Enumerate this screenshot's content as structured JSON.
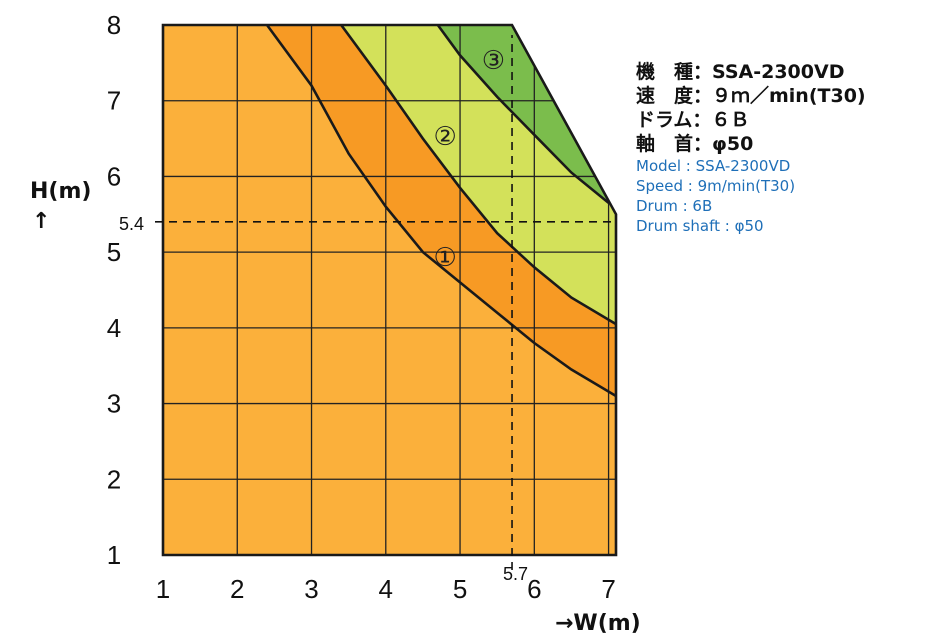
{
  "chart_data": {
    "type": "area",
    "title": "",
    "xlabel": "→W(m)",
    "ylabel": "H(m)",
    "ylabel_arrow": "↑",
    "xlim": [
      1,
      7.1
    ],
    "ylim": [
      1,
      8
    ],
    "x_ticks": [
      "1",
      "2",
      "3",
      "4",
      "5",
      "6",
      "7"
    ],
    "y_ticks": [
      "1",
      "2",
      "3",
      "4",
      "5",
      "6",
      "7",
      "8"
    ],
    "grid": true,
    "envelope": [
      [
        1,
        1
      ],
      [
        1,
        8
      ],
      [
        5.7,
        8
      ],
      [
        7.1,
        5.5
      ],
      [
        7.1,
        1
      ]
    ],
    "boundaries": [
      {
        "name": "1",
        "points": [
          [
            2.4,
            8
          ],
          [
            3.0,
            7.2
          ],
          [
            3.5,
            6.3
          ],
          [
            4.0,
            5.6
          ],
          [
            4.5,
            5.0
          ],
          [
            5.0,
            4.6
          ],
          [
            5.5,
            4.2
          ],
          [
            6.0,
            3.8
          ],
          [
            6.5,
            3.45
          ],
          [
            7.1,
            3.1
          ]
        ]
      },
      {
        "name": "2",
        "points": [
          [
            3.4,
            8
          ],
          [
            4.0,
            7.2
          ],
          [
            4.5,
            6.5
          ],
          [
            5.0,
            5.85
          ],
          [
            5.5,
            5.25
          ],
          [
            6.0,
            4.8
          ],
          [
            6.5,
            4.4
          ],
          [
            7.1,
            4.05
          ]
        ]
      },
      {
        "name": "3",
        "points": [
          [
            4.7,
            8
          ],
          [
            5.0,
            7.6
          ],
          [
            5.5,
            7.05
          ],
          [
            6.0,
            6.55
          ],
          [
            6.5,
            6.05
          ],
          [
            7.0,
            5.65
          ]
        ]
      }
    ],
    "zones": [
      {
        "label": "①",
        "x": 4.8,
        "y": 4.95,
        "color": "#f79a24"
      },
      {
        "label": "②",
        "x": 4.8,
        "y": 6.55,
        "color": "#d3e15a"
      },
      {
        "label": "③",
        "x": 5.45,
        "y": 7.55,
        "color": "#7bbd4c"
      }
    ],
    "base_color": "#fbb03b",
    "guide": {
      "x": 5.7,
      "y": 5.4,
      "x_label": "5.7",
      "y_label": "5.4"
    }
  },
  "specs": {
    "jp": [
      "機　種：SSA-2300VD",
      "速　度：９ｍ／min(T30)",
      "ドラム：６Ｂ",
      "軸　首：φ50"
    ],
    "en": [
      "Model : SSA-2300VD",
      "Speed : 9m/min(T30)",
      "Drum : 6B",
      "Drum shaft : φ50"
    ]
  }
}
